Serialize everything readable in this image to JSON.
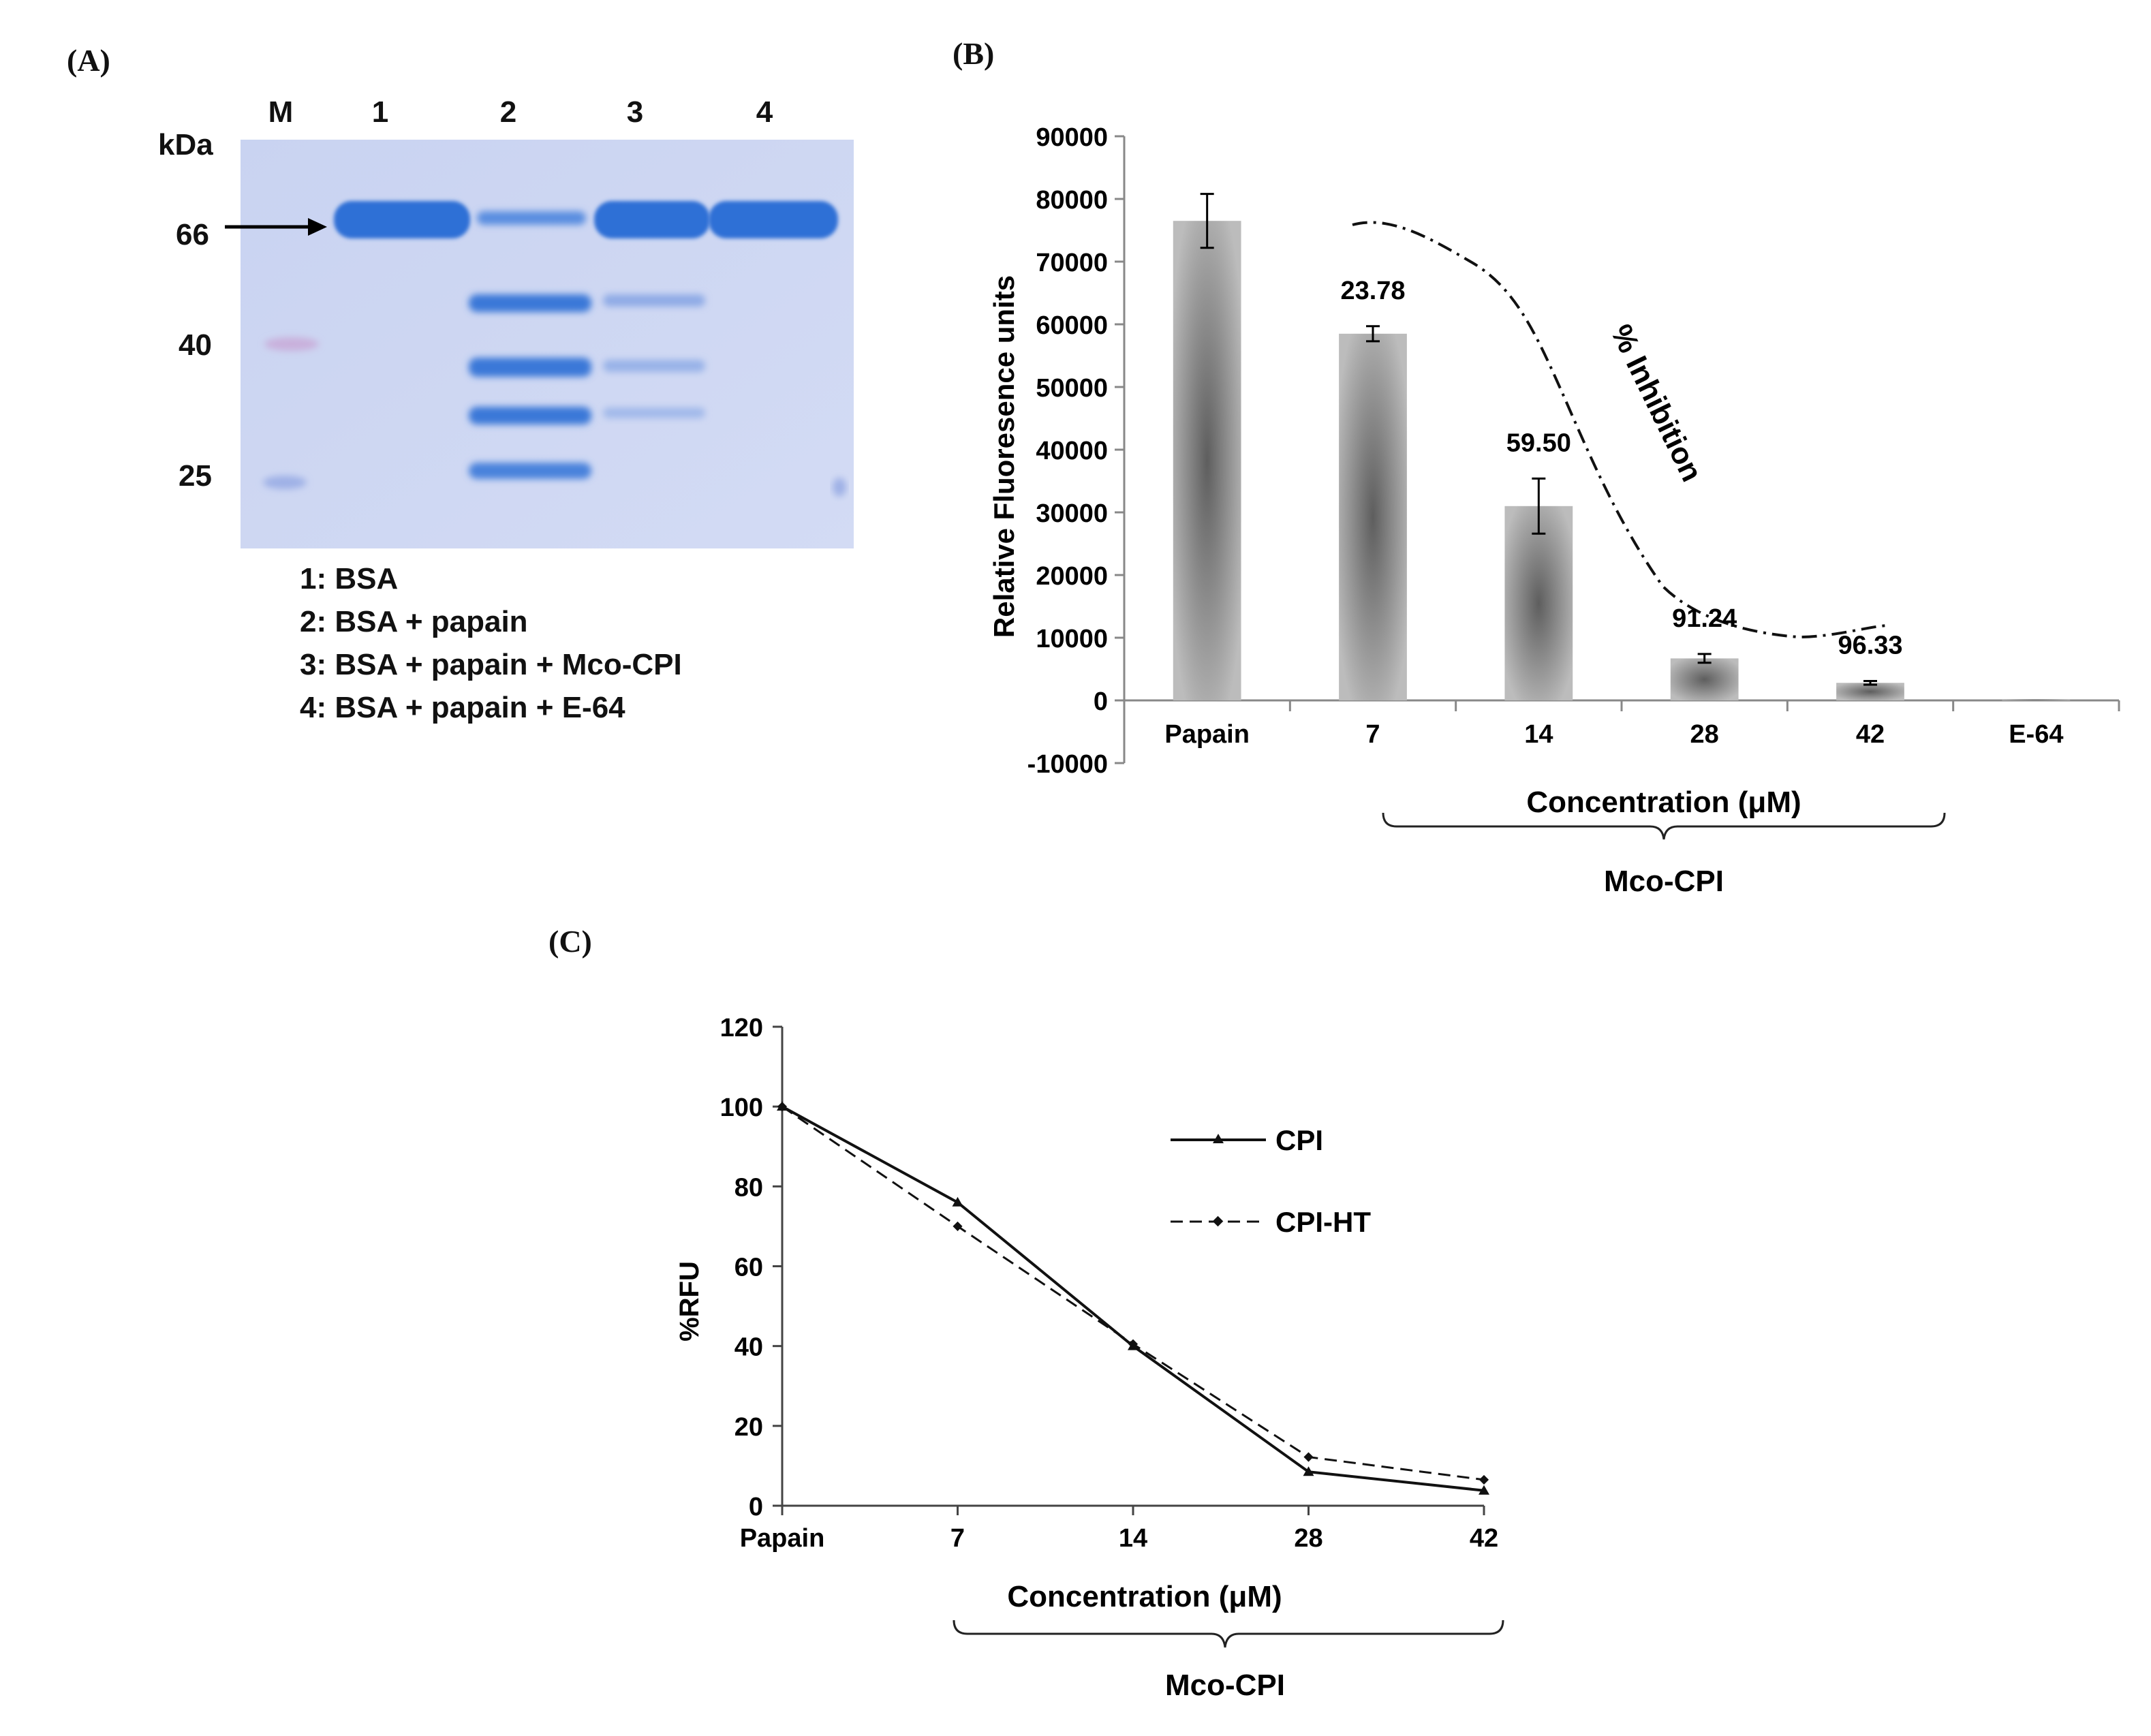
{
  "panel_labels": {
    "a": "(A)",
    "b": "(B)",
    "c": "(C)"
  },
  "gel": {
    "lane_labels": [
      "M",
      "1",
      "2",
      "3",
      "4"
    ],
    "unit": "kDa",
    "markers": [
      "66",
      "40",
      "25"
    ],
    "lane_legend": [
      "1: BSA",
      "2: BSA + papain",
      "3: BSA + papain + Mco-CPI",
      "4: BSA + papain + E-64"
    ]
  },
  "chart_data": [
    {
      "type": "bar",
      "categories": [
        "Papain",
        "7",
        "14",
        "28",
        "42",
        "E-64"
      ],
      "values": [
        76500,
        58500,
        31000,
        6700,
        2800,
        200
      ],
      "errors": [
        4300,
        1200,
        4400,
        700,
        300,
        0
      ],
      "data_labels": [
        "",
        "23.78",
        "59.50",
        "91.24",
        "96.33",
        ""
      ],
      "ylabel": "Relative Fluoresence units",
      "xlabel": "Concentration (μM)",
      "group_label": "Mco-CPI",
      "annotation": "% Inhibition",
      "ylim": [
        -10000,
        90000
      ],
      "yticks": [
        "90000",
        "80000",
        "70000",
        "60000",
        "50000",
        "40000",
        "30000",
        "20000",
        "10000",
        "0",
        "-10000"
      ],
      "colors": {
        "bar_edge": "#b8b8b8",
        "bar_center": "#6a6a6a"
      }
    },
    {
      "type": "line",
      "categories": [
        "Papain",
        "7",
        "14",
        "28",
        "42"
      ],
      "series": [
        {
          "name": "CPI",
          "values": [
            100,
            76,
            40,
            8.5,
            3.8
          ]
        },
        {
          "name": "CPI-HT",
          "values": [
            100,
            70,
            40.5,
            12.2,
            6.5
          ]
        }
      ],
      "ylabel": "%RFU",
      "xlabel": "Concentration (μM)",
      "group_label": "Mco-CPI",
      "ylim": [
        0,
        120
      ],
      "yticks": [
        "120",
        "100",
        "80",
        "60",
        "40",
        "20",
        "0"
      ]
    }
  ]
}
